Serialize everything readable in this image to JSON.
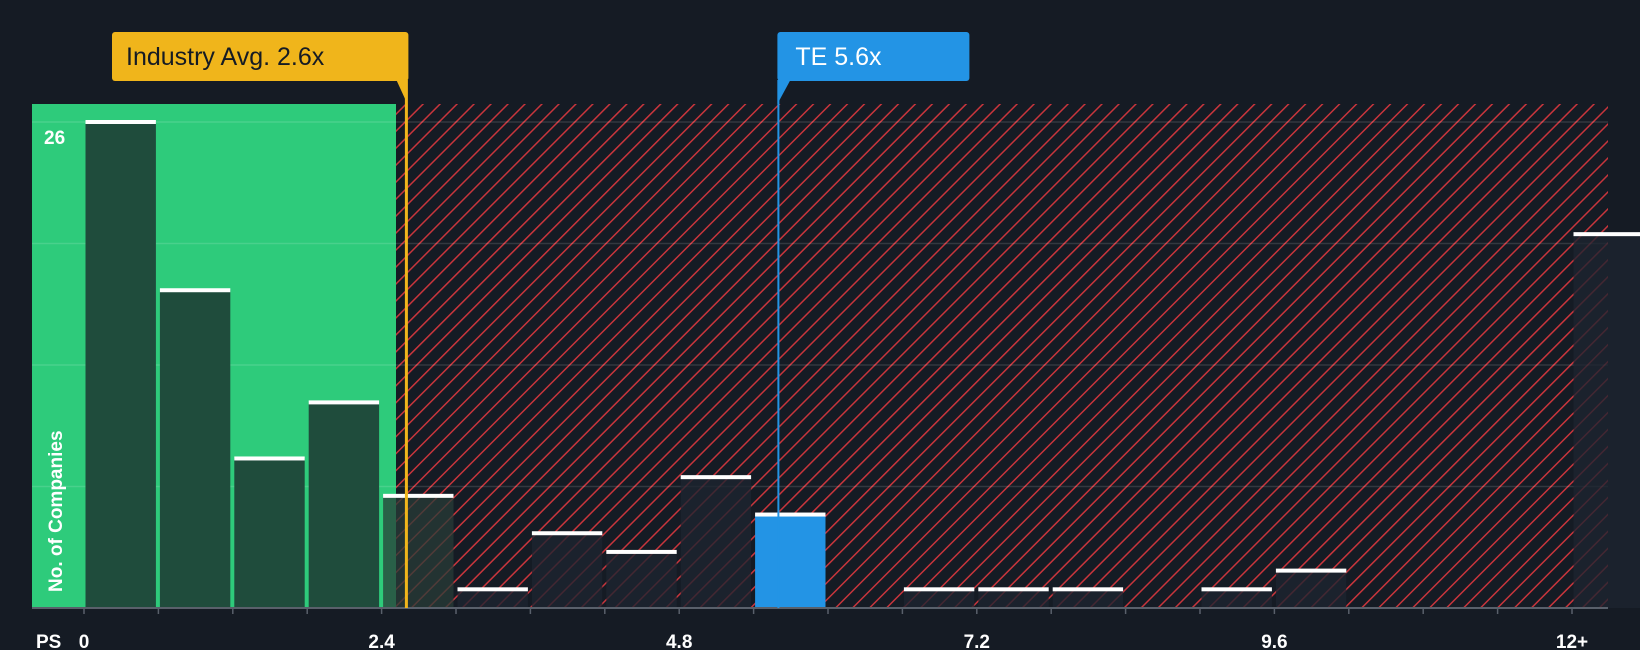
{
  "chart_data": {
    "type": "bar",
    "xlabel": "PS",
    "ylabel": "No. of Companies",
    "x_tick_labels": [
      "0",
      "2.4",
      "4.8",
      "7.2",
      "9.6",
      "12+"
    ],
    "x_tick_values": [
      0,
      2.4,
      4.8,
      7.2,
      9.6,
      12
    ],
    "y_max_label": "26",
    "ylim": [
      0,
      27
    ],
    "bin_width": 0.6,
    "bins": [
      {
        "x": 0.0,
        "count": 26
      },
      {
        "x": 0.6,
        "count": 17
      },
      {
        "x": 1.2,
        "count": 8
      },
      {
        "x": 1.8,
        "count": 11
      },
      {
        "x": 2.4,
        "count": 6
      },
      {
        "x": 3.0,
        "count": 1
      },
      {
        "x": 3.6,
        "count": 4
      },
      {
        "x": 4.2,
        "count": 3
      },
      {
        "x": 4.8,
        "count": 7
      },
      {
        "x": 5.4,
        "count": 5,
        "highlight": true
      },
      {
        "x": 6.6,
        "count": 1
      },
      {
        "x": 7.2,
        "count": 1
      },
      {
        "x": 7.8,
        "count": 1
      },
      {
        "x": 9.0,
        "count": 1
      },
      {
        "x": 9.6,
        "count": 2
      },
      {
        "x": 12.0,
        "count": 20
      }
    ],
    "fair_range_max": 2.5,
    "industry_avg": {
      "label": "Industry Avg. 2.6x",
      "value": 2.6
    },
    "company": {
      "label": "TE 5.6x",
      "value": 5.6
    },
    "colors": {
      "background": "#151b24",
      "fair_zone": "#2ecb7b",
      "bar_in_fair": "#1f4c3c",
      "bar_out": "#1d2430",
      "highlight": "#2394e5",
      "hatch": "#c8353c",
      "industry": "#f0b51b",
      "bar_cap": "#ffffff"
    }
  }
}
